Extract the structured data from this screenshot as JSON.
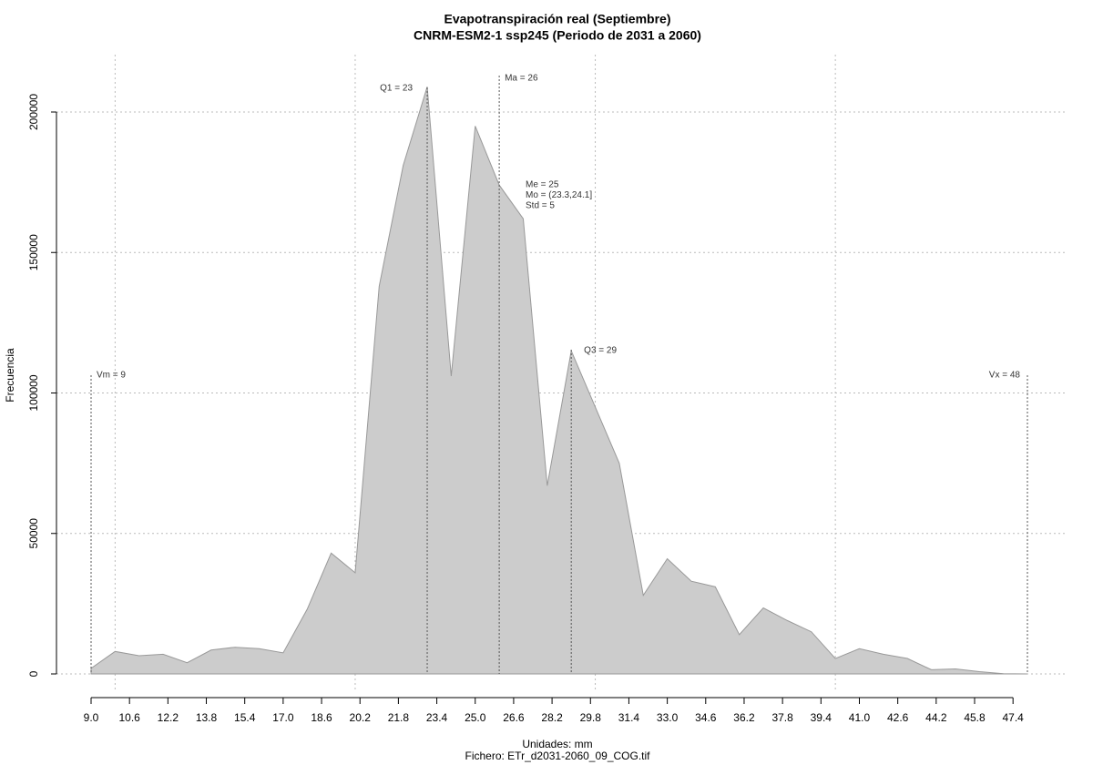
{
  "chart_data": {
    "type": "area",
    "title": "Evapotranspiración real (Septiembre)",
    "subtitle": "CNRM-ESM2-1 ssp245 (Periodo de 2031 a 2060)",
    "x_label": "Unidades: mm",
    "caption": "Fichero: ETr_d2031-2060_09_COG.tif",
    "y_label": "Frecuencia",
    "color": "#cccccc",
    "line_color": "#999999",
    "x": [
      9,
      10,
      11,
      12,
      13,
      14,
      15,
      16,
      17,
      18,
      19,
      20,
      21,
      22,
      23,
      24,
      25,
      26,
      27,
      28,
      29,
      30,
      31,
      32,
      33,
      34,
      35,
      36,
      37,
      38,
      39,
      40,
      41,
      42,
      43,
      44,
      45,
      46,
      47,
      48
    ],
    "values": [
      2000,
      8000,
      6500,
      7000,
      4000,
      8500,
      9500,
      9000,
      7500,
      23000,
      43000,
      36000,
      138000,
      181000,
      209000,
      106000,
      195000,
      174000,
      162000,
      67000,
      115000,
      95000,
      75000,
      28000,
      41000,
      33000,
      31000,
      14000,
      23500,
      19000,
      15000,
      5500,
      9000,
      7000,
      5500,
      1500,
      1800,
      800,
      100,
      0
    ],
    "xlim": [
      9,
      48
    ],
    "ylim": [
      0,
      200000
    ],
    "xticks": [
      {
        "value": 9,
        "label": "9.0"
      },
      10.6,
      12.2,
      13.8,
      15.4,
      {
        "value": 17,
        "label": "17.0"
      },
      18.6,
      20.2,
      21.8,
      23.4,
      {
        "value": 25,
        "label": "25.0"
      },
      26.6,
      28.2,
      29.8,
      31.4,
      {
        "value": 33,
        "label": "33.0"
      },
      34.6,
      36.2,
      37.8,
      39.4,
      {
        "value": 41,
        "label": "41.0"
      },
      42.6,
      44.2,
      45.8,
      47.4
    ],
    "yticks": [
      0,
      50000,
      100000,
      150000,
      200000
    ],
    "xgrid": [
      10,
      20,
      30,
      40
    ],
    "grid": true,
    "markers": [
      {
        "label": "Vm = 9",
        "value": 9
      },
      {
        "label": "Q1 = 23",
        "value": 23
      },
      {
        "label": "Ma = 26",
        "value": 26
      },
      {
        "label": "Q3 = 29",
        "value": 29
      },
      {
        "label": "Vx = 48",
        "value": 48
      }
    ],
    "stats": [
      "Me = 25",
      "Mo = (23.3,24.1]",
      "Std = 5"
    ]
  }
}
